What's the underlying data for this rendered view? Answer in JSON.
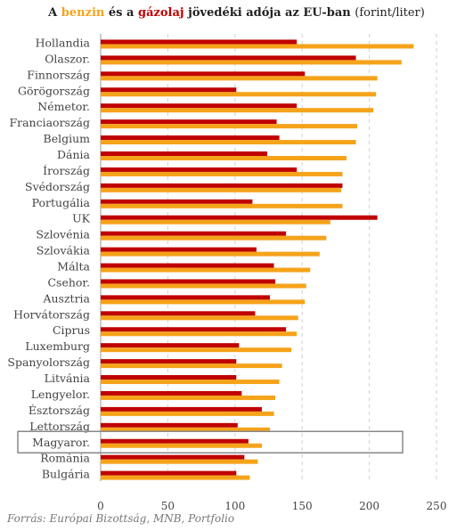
{
  "title": {
    "prefix": "A",
    "benzin": "benzin",
    "middle": "és a",
    "gazolaj": "gázolaj",
    "rest": "jövedéki adója az EU-ban",
    "unit": "(forint/liter)"
  },
  "source": "Forrás: Európai Bizottság, MNB, Portfolio",
  "colors": {
    "benzin": "#f5a31a",
    "gazolaj": "#c00000",
    "grid": "#cfcfcf",
    "highlight_box": "#888888"
  },
  "chart_data": {
    "type": "bar",
    "orientation": "horizontal",
    "categories": [
      "Hollandia",
      "Olaszor.",
      "Finnország",
      "Görögország",
      "Németor.",
      "Franciaország",
      "Belgium",
      "Dánia",
      "Írország",
      "Svédország",
      "Portugália",
      "UK",
      "Szlovénia",
      "Szlovákia",
      "Málta",
      "Csehor.",
      "Ausztria",
      "Horvátország",
      "Ciprus",
      "Luxemburg",
      "Spanyolország",
      "Litvánia",
      "Lengyelor.",
      "Észtország",
      "Lettország",
      "Magyaror.",
      "Románia",
      "Bulgária"
    ],
    "series": [
      {
        "name": "gázolaj",
        "values": [
          146,
          190,
          152,
          101,
          146,
          131,
          133,
          124,
          146,
          180,
          113,
          206,
          138,
          116,
          129,
          130,
          126,
          115,
          138,
          103,
          101,
          101,
          105,
          120,
          102,
          110,
          107,
          101
        ]
      },
      {
        "name": "benzin",
        "values": [
          233,
          224,
          206,
          205,
          203,
          191,
          190,
          183,
          180,
          179,
          180,
          171,
          168,
          163,
          156,
          153,
          152,
          147,
          146,
          142,
          135,
          133,
          130,
          129,
          126,
          120,
          117,
          111
        ]
      }
    ],
    "xlim": [
      0,
      250
    ],
    "xticks": [
      "0",
      "50",
      "100",
      "150",
      "200",
      "250"
    ],
    "grid": true,
    "highlight": "Magyaror."
  }
}
